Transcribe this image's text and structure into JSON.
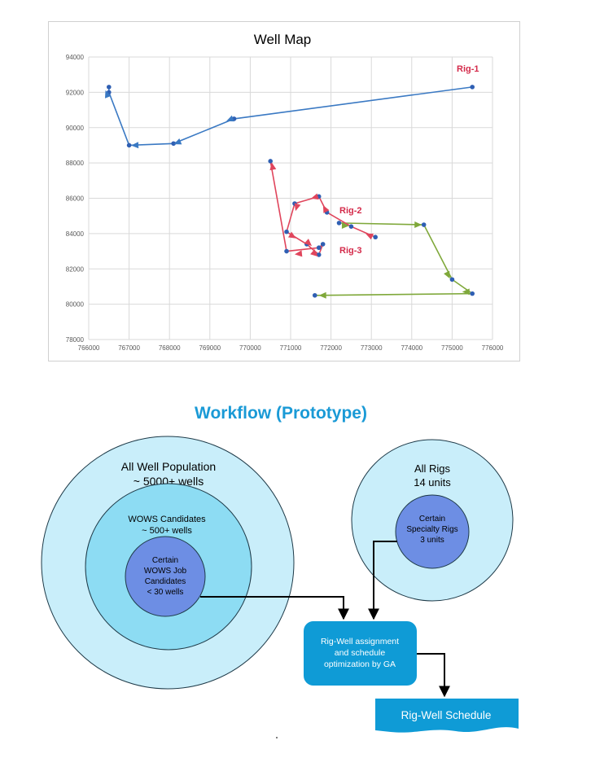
{
  "chart_data": {
    "type": "scatter",
    "title": "Well Map",
    "xlim": [
      766000,
      776000
    ],
    "ylim": [
      78000,
      94000
    ],
    "x_ticks": [
      "766000",
      "767000",
      "768000",
      "769000",
      "770000",
      "771000",
      "772000",
      "773000",
      "774000",
      "775000",
      "776000"
    ],
    "y_ticks": [
      "78000",
      "80000",
      "82000",
      "84000",
      "86000",
      "88000",
      "90000",
      "92000",
      "94000"
    ],
    "grid": true,
    "series": [
      {
        "name": "Rig-1",
        "color": "#3a79c3",
        "label_color": "#d42a4a",
        "points": [
          [
            775500,
            92300
          ],
          [
            769600,
            90500
          ],
          [
            768100,
            89100
          ],
          [
            767000,
            89000
          ],
          [
            766500,
            92000
          ],
          [
            766500,
            92300
          ]
        ],
        "arrows": [
          [
            769500,
            90450
          ],
          [
            768200,
            89150
          ],
          [
            767150,
            89000
          ],
          [
            766450,
            91900
          ]
        ]
      },
      {
        "name": "Rig-2",
        "color": "#7fa83a",
        "label_color": "#d42a4a",
        "points": [
          [
            772200,
            84600
          ],
          [
            774300,
            84500
          ],
          [
            775000,
            81400
          ],
          [
            775500,
            80600
          ],
          [
            771600,
            80500
          ]
        ],
        "arrows": [
          [
            772350,
            84450
          ],
          [
            774150,
            84500
          ],
          [
            774900,
            81650
          ],
          [
            775350,
            80700
          ],
          [
            771800,
            80500
          ]
        ]
      },
      {
        "name": "Rig-3",
        "color": "#e0455c",
        "label_color": "#d42a4a",
        "points": [
          [
            773100,
            83800
          ],
          [
            772500,
            84400
          ],
          [
            771900,
            85200
          ],
          [
            771700,
            86100
          ],
          [
            771100,
            85700
          ],
          [
            770900,
            84100
          ],
          [
            771400,
            83400
          ],
          [
            771700,
            82800
          ],
          [
            771800,
            83400
          ],
          [
            771700,
            83200
          ],
          [
            770900,
            83000
          ],
          [
            770500,
            88100
          ]
        ],
        "arrows": [
          [
            772950,
            83900
          ],
          [
            771850,
            85400
          ],
          [
            771600,
            86050
          ],
          [
            771150,
            85500
          ],
          [
            771050,
            83850
          ],
          [
            771450,
            83450
          ],
          [
            771600,
            82850
          ],
          [
            771200,
            82850
          ],
          [
            770550,
            87800
          ]
        ]
      }
    ]
  },
  "workflow": {
    "title": "Workflow (Prototype)",
    "population_outer": {
      "line1": "All Well Population",
      "line2": "~ 5000+ wells"
    },
    "population_middle": {
      "line1": "WOWS Candidates",
      "line2": "~ 500+ wells"
    },
    "population_inner": {
      "line1": "Certain",
      "line2": "WOWS Job",
      "line3": "Candidates",
      "line4": "< 30 wells"
    },
    "rigs_outer": {
      "line1": "All Rigs",
      "line2": "14 units"
    },
    "rigs_inner": {
      "line1": "Certain",
      "line2": "Specialty Rigs",
      "line3": "3 units"
    },
    "optimizer": {
      "line1": "Rig-Well assignment",
      "line2": "and schedule",
      "line3": "optimization by GA"
    },
    "output": {
      "label": "Rig-Well Schedule"
    },
    "colors": {
      "outer_circle": "#c9eefa",
      "middle_circle": "#8ddcf3",
      "inner_circle": "#6d8ee4",
      "optimizer_box": "#0f9bd6",
      "output_box": "#0f9bd6"
    }
  }
}
